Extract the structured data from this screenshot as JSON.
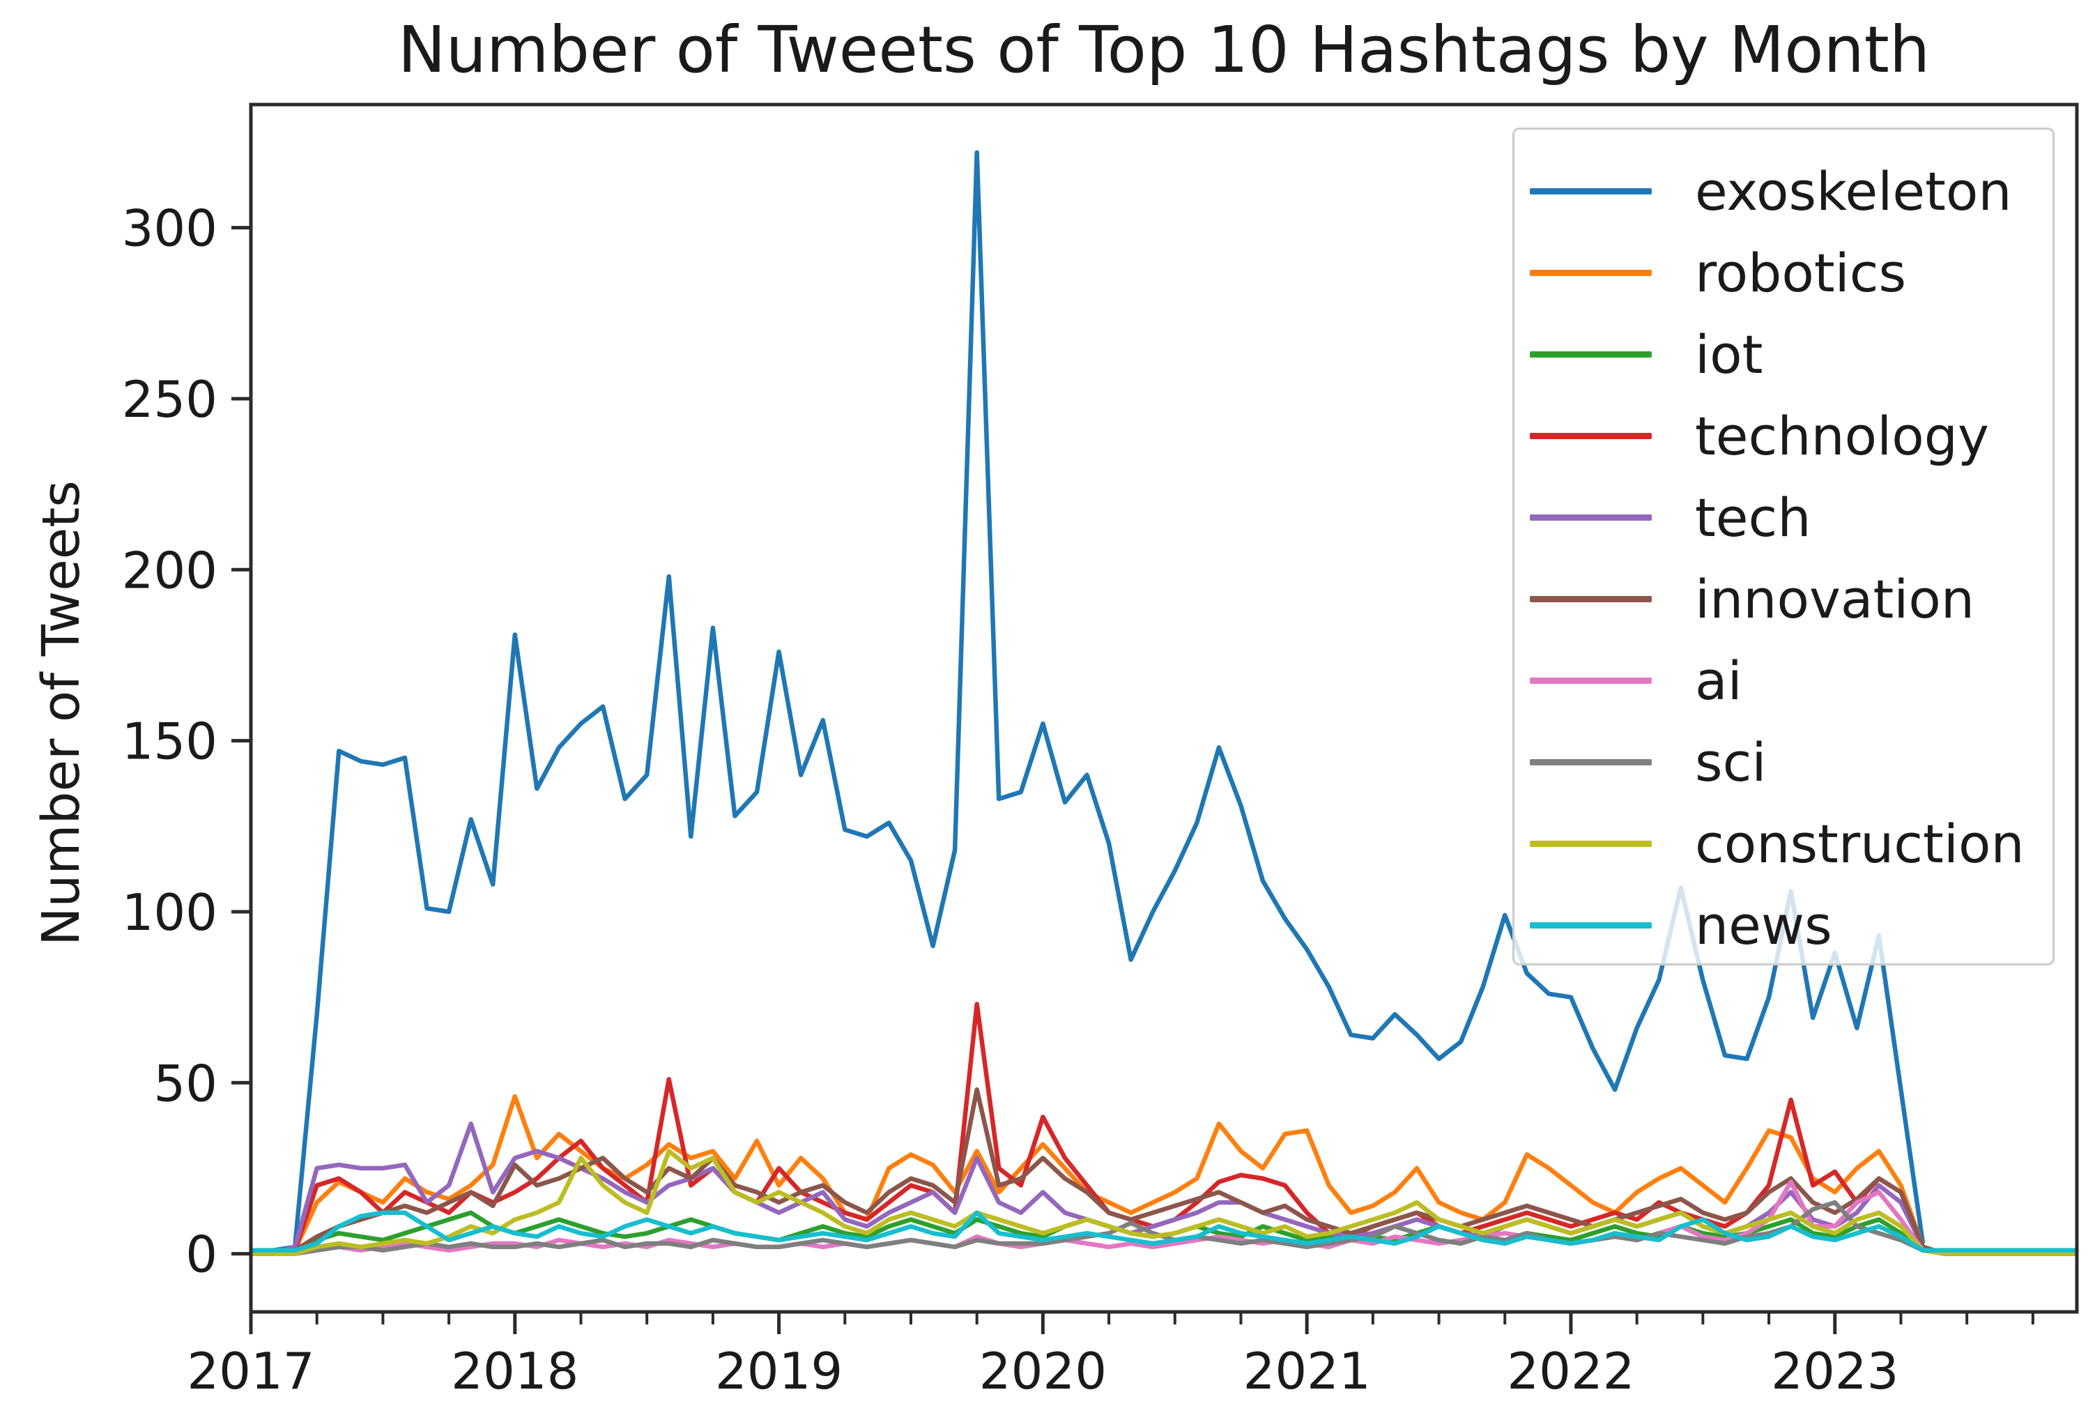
{
  "figure": {
    "background": "#ffffff",
    "axes_color": "#2b2b2b",
    "text_color": "#1a1a1a"
  },
  "chart_data": {
    "type": "line",
    "title": "Number of Tweets of Top 10 Hashtags by Month",
    "xlabel": "",
    "ylabel": "Number of Tweets",
    "x_unit": "month",
    "x_start": "2017-01",
    "x_end": "2023-12",
    "xlim": [
      0,
      83
    ],
    "ylim": [
      -17,
      336
    ],
    "grid": false,
    "legend_position": "upper right",
    "x_tick_labels": [
      "2017",
      "2018",
      "2019",
      "2020",
      "2021",
      "2022",
      "2023"
    ],
    "x_tick_positions": [
      0,
      12,
      24,
      36,
      48,
      60,
      72
    ],
    "x_minor_tick_every": 3,
    "y_ticks": [
      0,
      50,
      100,
      150,
      200,
      250,
      300
    ],
    "series": [
      {
        "name": "exoskeleton",
        "color": "#1f77b4",
        "values": [
          0,
          1,
          2,
          70,
          147,
          144,
          143,
          145,
          101,
          100,
          127,
          108,
          181,
          136,
          148,
          155,
          160,
          133,
          140,
          198,
          122,
          183,
          128,
          135,
          176,
          140,
          156,
          124,
          122,
          126,
          115,
          90,
          118,
          322,
          133,
          135,
          155,
          132,
          140,
          120,
          86,
          100,
          112,
          126,
          148,
          131,
          109,
          98,
          89,
          78,
          64,
          63,
          70,
          64,
          57,
          62,
          78,
          99,
          82,
          76,
          75,
          60,
          48,
          66,
          80,
          107,
          80,
          58,
          57,
          75,
          106,
          69,
          88,
          66,
          93,
          48,
          3
        ]
      },
      {
        "name": "robotics",
        "color": "#ff7f0e",
        "values": [
          0,
          0,
          1,
          15,
          21,
          18,
          15,
          22,
          18,
          16,
          20,
          26,
          46,
          28,
          35,
          30,
          25,
          22,
          26,
          32,
          28,
          30,
          22,
          33,
          20,
          28,
          22,
          12,
          10,
          25,
          29,
          26,
          18,
          30,
          18,
          25,
          32,
          25,
          18,
          15,
          12,
          15,
          18,
          22,
          38,
          30,
          25,
          35,
          36,
          20,
          12,
          14,
          18,
          25,
          15,
          12,
          10,
          15,
          29,
          25,
          20,
          15,
          12,
          18,
          22,
          25,
          20,
          15,
          25,
          36,
          34,
          22,
          18,
          25,
          30,
          20,
          2,
          0,
          0,
          0,
          0,
          0,
          0,
          0
        ]
      },
      {
        "name": "iot",
        "color": "#2ca02c",
        "values": [
          0,
          0,
          1,
          4,
          6,
          5,
          4,
          6,
          8,
          10,
          12,
          8,
          6,
          8,
          10,
          8,
          6,
          5,
          6,
          8,
          10,
          8,
          6,
          5,
          4,
          6,
          8,
          6,
          5,
          8,
          10,
          8,
          6,
          10,
          8,
          6,
          5,
          8,
          10,
          8,
          6,
          5,
          6,
          8,
          6,
          5,
          8,
          6,
          4,
          5,
          6,
          5,
          4,
          6,
          8,
          6,
          5,
          4,
          6,
          5,
          4,
          6,
          8,
          6,
          5,
          8,
          6,
          5,
          6,
          8,
          10,
          6,
          5,
          8,
          10,
          6,
          1,
          0,
          0,
          0,
          0,
          0,
          0,
          0
        ]
      },
      {
        "name": "technology",
        "color": "#d62728",
        "values": [
          0,
          0,
          1,
          20,
          22,
          18,
          12,
          18,
          15,
          12,
          18,
          15,
          18,
          22,
          28,
          33,
          25,
          20,
          15,
          51,
          20,
          25,
          18,
          15,
          25,
          18,
          15,
          12,
          10,
          15,
          20,
          18,
          12,
          73,
          25,
          20,
          40,
          28,
          20,
          12,
          10,
          8,
          10,
          15,
          21,
          23,
          22,
          20,
          12,
          6,
          5,
          8,
          10,
          12,
          8,
          6,
          8,
          10,
          12,
          10,
          8,
          10,
          12,
          10,
          15,
          12,
          10,
          8,
          12,
          20,
          45,
          20,
          24,
          15,
          22,
          18,
          2,
          0,
          0,
          0,
          0,
          0,
          0,
          0
        ]
      },
      {
        "name": "tech",
        "color": "#9467bd",
        "values": [
          0,
          0,
          2,
          25,
          26,
          25,
          25,
          26,
          15,
          20,
          38,
          18,
          28,
          30,
          28,
          25,
          22,
          18,
          15,
          20,
          22,
          25,
          18,
          15,
          12,
          15,
          18,
          10,
          8,
          12,
          15,
          18,
          12,
          28,
          15,
          12,
          18,
          12,
          10,
          8,
          6,
          8,
          10,
          12,
          15,
          15,
          12,
          10,
          8,
          6,
          5,
          6,
          8,
          10,
          8,
          6,
          5,
          8,
          10,
          8,
          6,
          8,
          10,
          8,
          10,
          12,
          8,
          6,
          8,
          12,
          18,
          10,
          8,
          12,
          20,
          15,
          2,
          0,
          0,
          0,
          0,
          0,
          0,
          0
        ]
      },
      {
        "name": "innovation",
        "color": "#8c564b",
        "values": [
          0,
          0,
          1,
          5,
          8,
          10,
          12,
          14,
          12,
          15,
          18,
          14,
          26,
          20,
          22,
          25,
          28,
          22,
          18,
          25,
          22,
          28,
          20,
          18,
          15,
          18,
          20,
          15,
          12,
          18,
          22,
          20,
          15,
          48,
          20,
          22,
          28,
          22,
          18,
          12,
          10,
          12,
          14,
          16,
          18,
          15,
          12,
          14,
          10,
          8,
          6,
          8,
          10,
          12,
          10,
          8,
          10,
          12,
          14,
          12,
          10,
          8,
          10,
          12,
          14,
          16,
          12,
          10,
          12,
          18,
          22,
          15,
          12,
          16,
          22,
          18,
          2,
          0,
          0,
          0,
          0,
          0,
          0,
          0
        ]
      },
      {
        "name": "ai",
        "color": "#e377c2",
        "values": [
          0,
          0,
          0,
          1,
          2,
          1,
          2,
          3,
          2,
          1,
          2,
          3,
          3,
          2,
          4,
          3,
          2,
          3,
          2,
          4,
          3,
          2,
          3,
          2,
          2,
          3,
          2,
          3,
          2,
          3,
          4,
          3,
          2,
          5,
          3,
          2,
          3,
          4,
          3,
          2,
          3,
          2,
          3,
          4,
          5,
          4,
          3,
          4,
          3,
          2,
          4,
          3,
          5,
          4,
          3,
          4,
          5,
          6,
          5,
          4,
          3,
          4,
          5,
          4,
          6,
          8,
          5,
          4,
          6,
          10,
          21,
          8,
          8,
          15,
          18,
          10,
          1,
          0,
          0,
          0,
          0,
          0,
          0,
          0
        ]
      },
      {
        "name": "sci",
        "color": "#7f7f7f",
        "values": [
          0,
          0,
          0,
          1,
          2,
          2,
          1,
          2,
          3,
          2,
          3,
          2,
          2,
          3,
          2,
          3,
          4,
          2,
          3,
          3,
          2,
          4,
          3,
          2,
          2,
          3,
          4,
          3,
          2,
          3,
          4,
          3,
          2,
          4,
          3,
          3,
          3,
          4,
          5,
          6,
          9,
          6,
          4,
          5,
          4,
          3,
          4,
          3,
          2,
          3,
          4,
          5,
          8,
          6,
          4,
          3,
          5,
          4,
          6,
          4,
          3,
          4,
          5,
          4,
          6,
          5,
          4,
          3,
          5,
          6,
          8,
          13,
          15,
          8,
          6,
          4,
          1,
          0,
          0,
          0,
          0,
          0,
          0,
          0
        ]
      },
      {
        "name": "construction",
        "color": "#bcbd22",
        "values": [
          0,
          0,
          0,
          2,
          3,
          2,
          3,
          4,
          3,
          5,
          8,
          6,
          10,
          12,
          15,
          28,
          20,
          15,
          12,
          30,
          25,
          28,
          18,
          15,
          18,
          15,
          12,
          8,
          6,
          10,
          12,
          10,
          8,
          12,
          10,
          8,
          6,
          8,
          10,
          8,
          6,
          5,
          6,
          8,
          10,
          8,
          6,
          8,
          5,
          6,
          8,
          10,
          12,
          15,
          10,
          8,
          6,
          8,
          10,
          8,
          6,
          8,
          10,
          8,
          10,
          12,
          8,
          6,
          8,
          10,
          12,
          8,
          6,
          10,
          12,
          8,
          1,
          0,
          0,
          0,
          0,
          0,
          0,
          0
        ]
      },
      {
        "name": "news",
        "color": "#17becf",
        "values": [
          1,
          1,
          1,
          3,
          8,
          11,
          12,
          12,
          8,
          4,
          6,
          8,
          6,
          5,
          8,
          6,
          5,
          8,
          10,
          8,
          6,
          8,
          6,
          5,
          4,
          5,
          6,
          5,
          4,
          6,
          8,
          6,
          5,
          12,
          6,
          5,
          4,
          5,
          6,
          5,
          4,
          3,
          4,
          5,
          8,
          6,
          5,
          4,
          3,
          4,
          5,
          4,
          3,
          5,
          8,
          6,
          4,
          3,
          5,
          4,
          3,
          4,
          6,
          5,
          4,
          8,
          10,
          6,
          4,
          5,
          8,
          5,
          4,
          6,
          8,
          5,
          1,
          1,
          1,
          1,
          1,
          1,
          1,
          1
        ]
      }
    ]
  }
}
